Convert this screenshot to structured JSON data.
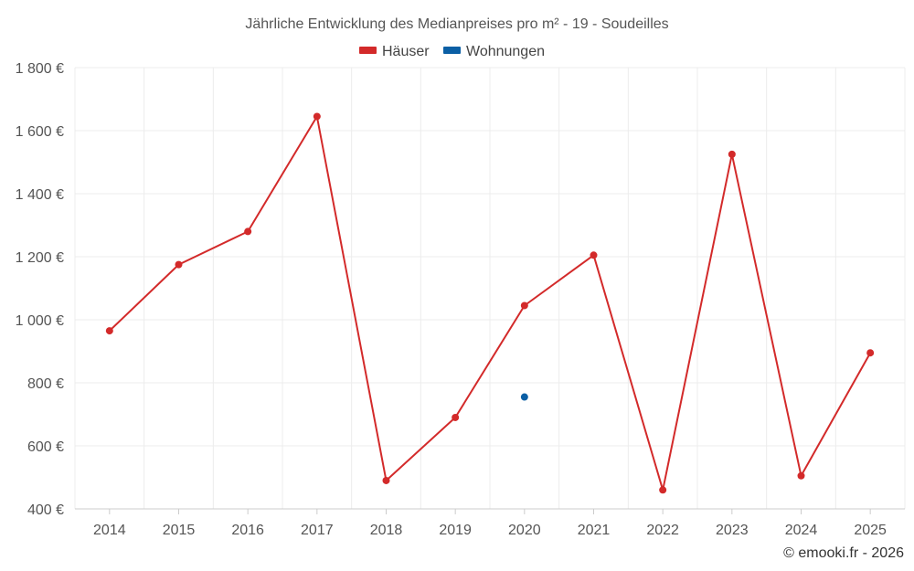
{
  "chart_data": {
    "type": "line",
    "title": "Jährliche Entwicklung des Medianpreises pro m² - 19 - Soudeilles",
    "categories": [
      "2014",
      "2015",
      "2016",
      "2017",
      "2018",
      "2019",
      "2020",
      "2021",
      "2022",
      "2023",
      "2024",
      "2025"
    ],
    "series": [
      {
        "name": "Häuser",
        "color": "#d32a2a",
        "values": [
          965,
          1175,
          1280,
          1645,
          490,
          690,
          1045,
          1205,
          460,
          1525,
          505,
          895
        ]
      },
      {
        "name": "Wohnungen",
        "color": "#0b5fa5",
        "values": [
          null,
          null,
          null,
          null,
          null,
          null,
          755,
          null,
          null,
          null,
          null,
          null
        ]
      }
    ],
    "ylim": [
      400,
      1800
    ],
    "yticks": [
      400,
      600,
      800,
      1000,
      1200,
      1400,
      1600,
      1800
    ],
    "ytick_labels": [
      "400 €",
      "600 €",
      "800 €",
      "1 000 €",
      "1 200 €",
      "1 400 €",
      "1 600 €",
      "1 800 €"
    ],
    "grid": true,
    "legend_position": "top-center",
    "xlabel": "",
    "ylabel": ""
  },
  "credit": "© emooki.fr - 2026"
}
